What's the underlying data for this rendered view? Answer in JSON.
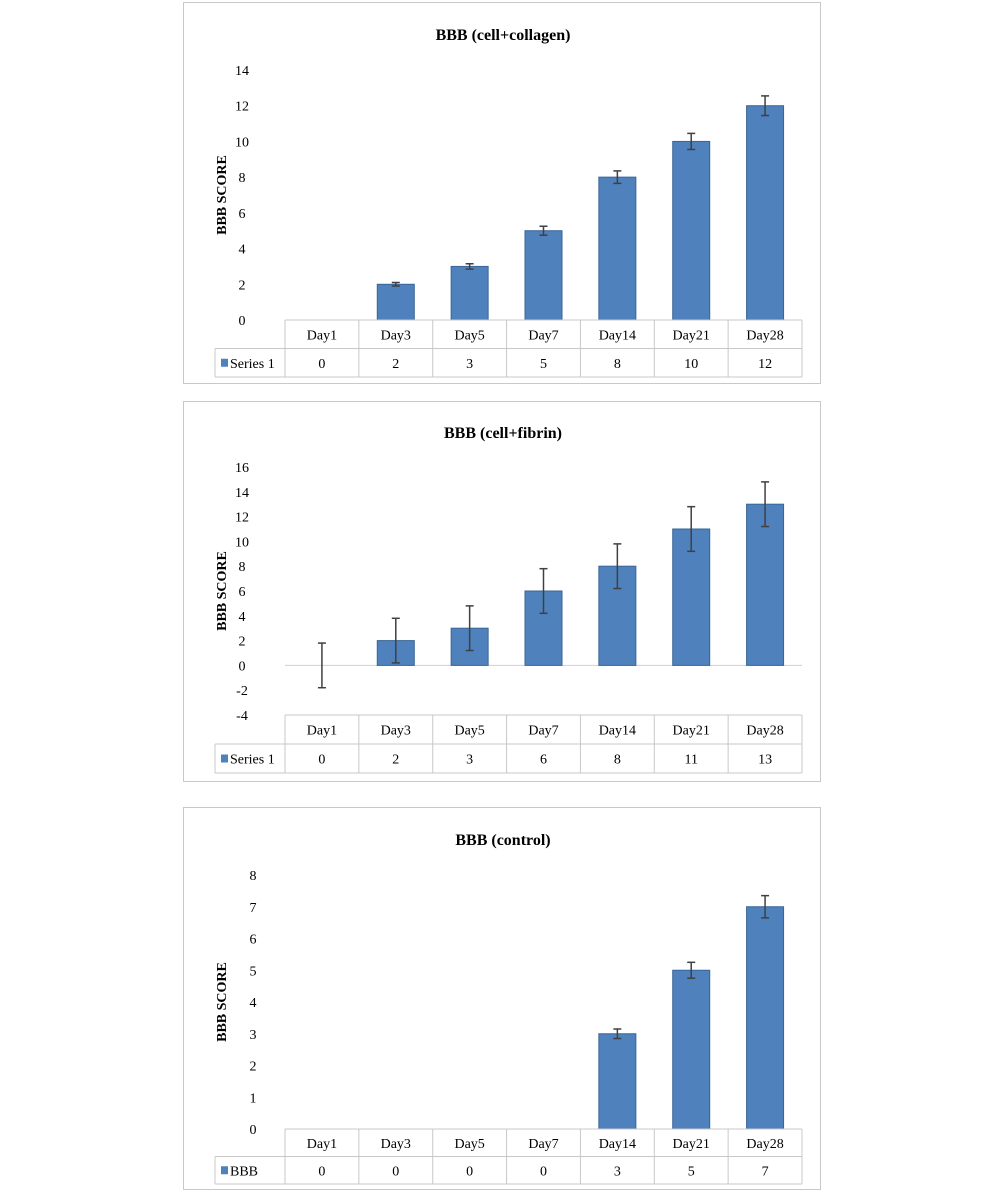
{
  "chart_data": [
    {
      "type": "bar",
      "title": "BBB (cell+collagen)",
      "ylabel": "BBB SCORE",
      "categories": [
        "Day1",
        "Day3",
        "Day5",
        "Day7",
        "Day14",
        "Day21",
        "Day28"
      ],
      "series": [
        {
          "name": "Series 1",
          "values": [
            0,
            2,
            3,
            5,
            8,
            10,
            12
          ],
          "error": [
            0,
            0.1,
            0.15,
            0.25,
            0.35,
            0.45,
            0.55
          ]
        }
      ],
      "table_values": [
        "0",
        "2",
        "3",
        "5",
        "8",
        "10",
        "12"
      ],
      "ylim": [
        0,
        14
      ],
      "yticks": [
        0,
        2,
        4,
        6,
        8,
        10,
        12,
        14
      ],
      "grid": false,
      "legend": "data-table"
    },
    {
      "type": "bar",
      "title": "BBB (cell+fibrin)",
      "ylabel": "BBB SCORE",
      "categories": [
        "Day1",
        "Day3",
        "Day5",
        "Day7",
        "Day14",
        "Day21",
        "Day28"
      ],
      "series": [
        {
          "name": "Series 1",
          "values": [
            0,
            2,
            3,
            6,
            8,
            11,
            13
          ],
          "error": [
            1.8,
            1.8,
            1.8,
            1.8,
            1.8,
            1.8,
            1.8
          ]
        }
      ],
      "table_values": [
        "0",
        "2",
        "3",
        "6",
        "8",
        "11",
        "13"
      ],
      "ylim": [
        -4,
        16
      ],
      "yticks": [
        -4,
        -2,
        0,
        2,
        4,
        6,
        8,
        10,
        12,
        14,
        16
      ],
      "grid": false,
      "legend": "data-table"
    },
    {
      "type": "bar",
      "title": "BBB (control)",
      "ylabel": "BBB SCORE",
      "categories": [
        "Day1",
        "Day3",
        "Day5",
        "Day7",
        "Day14",
        "Day21",
        "Day28"
      ],
      "series": [
        {
          "name": "BBB",
          "values": [
            0,
            0,
            0,
            0,
            3,
            5,
            7
          ],
          "error": [
            0,
            0,
            0,
            0,
            0.15,
            0.25,
            0.35
          ]
        }
      ],
      "table_values": [
        "0",
        "0",
        "0",
        "0",
        "3",
        "5",
        "7"
      ],
      "ylim": [
        0,
        8
      ],
      "yticks": [
        0,
        1,
        2,
        3,
        4,
        5,
        6,
        7,
        8
      ],
      "grid": false,
      "legend": "data-table"
    }
  ],
  "colors": {
    "bar": "#4f81bd",
    "bar_edge": "#3a6597",
    "error_bar": "#404040",
    "border": "#c8c8c8"
  }
}
